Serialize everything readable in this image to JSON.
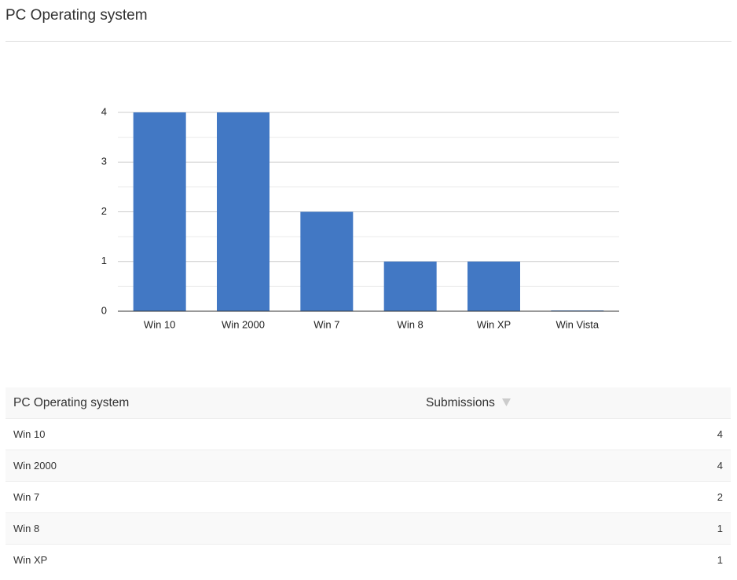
{
  "header": {
    "title": "PC Operating system"
  },
  "chart_data": {
    "type": "bar",
    "categories": [
      "Win 10",
      "Win 2000",
      "Win 7",
      "Win 8",
      "Win XP",
      "Win Vista"
    ],
    "values": [
      4,
      4,
      2,
      1,
      1,
      0
    ],
    "color": "#4278c4",
    "ylim": [
      0,
      4
    ],
    "yticks": [
      0,
      1,
      2,
      3,
      4
    ],
    "minor_yticks": [
      0.5,
      1.5,
      2.5,
      3.5
    ],
    "grid": true
  },
  "table": {
    "columns": [
      "PC Operating system",
      "Submissions"
    ],
    "rows": [
      [
        "Win 10",
        "4"
      ],
      [
        "Win 2000",
        "4"
      ],
      [
        "Win 7",
        "2"
      ],
      [
        "Win 8",
        "1"
      ],
      [
        "Win XP",
        "1"
      ]
    ]
  }
}
